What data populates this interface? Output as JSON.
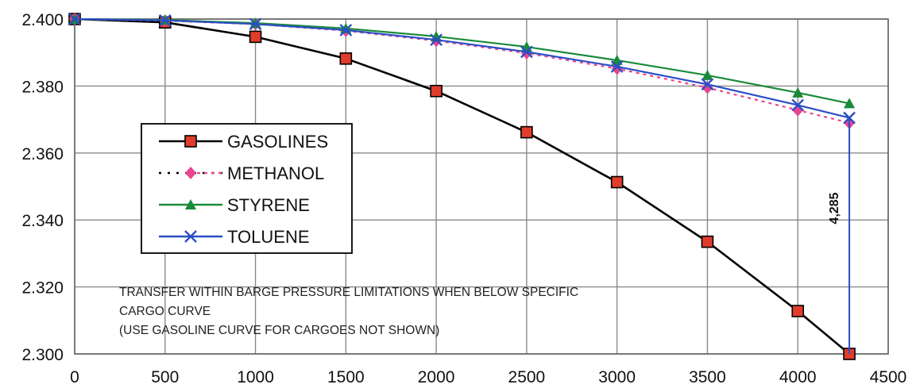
{
  "chart_data": {
    "type": "line",
    "title": "",
    "xlabel": "",
    "ylabel": "",
    "xlim": [
      0,
      4500
    ],
    "ylim": [
      2.3,
      2.4
    ],
    "x_ticks": [
      "0",
      "500",
      "1000",
      "1500",
      "2000",
      "2500",
      "3000",
      "3500",
      "4000",
      "4500"
    ],
    "y_ticks": [
      "2.300",
      "2.320",
      "2.340",
      "2.360",
      "2.380",
      "2.400"
    ],
    "grid": true,
    "legend_position": "left-middle",
    "series": [
      {
        "name": "GASOLINES",
        "color": "#000000",
        "marker": "square",
        "marker_color": "#e03c2c",
        "dash": false,
        "x": [
          0,
          500,
          1000,
          1500,
          2000,
          2500,
          3000,
          3500,
          4000,
          4285
        ],
        "y": [
          2.4,
          2.399,
          2.3947,
          2.3882,
          2.3785,
          2.3662,
          2.3513,
          2.3335,
          2.3128,
          2.3
        ]
      },
      {
        "name": "METHANOL",
        "color": "#e8458f",
        "marker": "diamond",
        "marker_color": "#e8458f",
        "dash": true,
        "x": [
          0,
          500,
          1000,
          1500,
          2000,
          2500,
          3000,
          3500,
          4000,
          4285
        ],
        "y": [
          2.4,
          2.3995,
          2.3985,
          2.3965,
          2.3935,
          2.3898,
          2.3852,
          2.3795,
          2.3728,
          2.369
        ]
      },
      {
        "name": "STYRENE",
        "color": "#1a8a3a",
        "marker": "triangle",
        "marker_color": "#1a8a3a",
        "dash": false,
        "x": [
          0,
          500,
          1000,
          1500,
          2000,
          2500,
          3000,
          3500,
          4000,
          4285
        ],
        "y": [
          2.4,
          2.3997,
          2.3988,
          2.3972,
          2.3948,
          2.3917,
          2.3877,
          2.3832,
          2.378,
          2.3748
        ]
      },
      {
        "name": "TOLUENE",
        "color": "#2a4fc4",
        "marker": "x",
        "marker_color": "#2a4fc4",
        "dash": false,
        "x": [
          0,
          500,
          1000,
          1500,
          2000,
          2500,
          3000,
          3500,
          4000,
          4285
        ],
        "y": [
          2.4,
          2.3996,
          2.3985,
          2.3967,
          2.3938,
          2.3902,
          2.3858,
          2.3805,
          2.3743,
          2.3705
        ]
      }
    ],
    "vertical_marker": {
      "x": 4285,
      "y_from": 2.3,
      "y_to": 2.3705,
      "label": "4,285",
      "color": "#2a4fc4"
    },
    "annotation": [
      "TRANSFER WITHIN BARGE PRESSURE LIMITATIONS WHEN BELOW SPECIFIC",
      "CARGO CURVE",
      "(USE GASOLINE CURVE FOR CARGOES NOT SHOWN)"
    ]
  }
}
